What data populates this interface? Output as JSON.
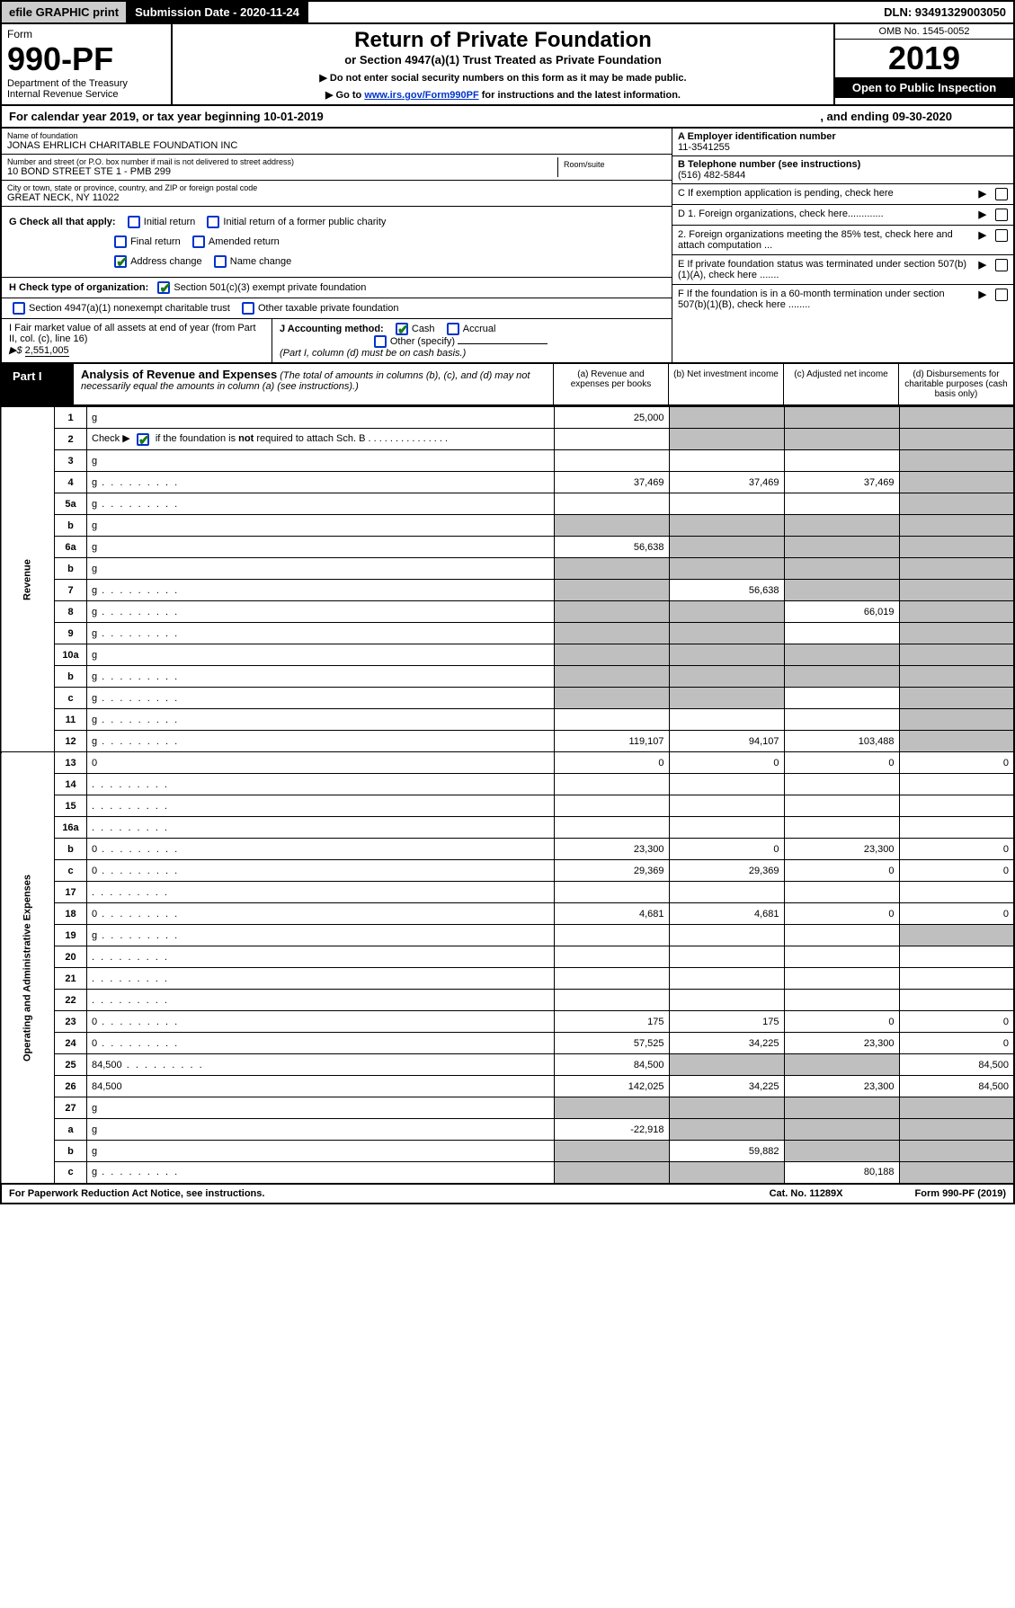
{
  "colors": {
    "link": "#0033cc",
    "check_border": "#0033cc",
    "check_mark": "#1a7a1a",
    "grey_fill": "#bfbfbf",
    "black": "#000000"
  },
  "topbar": {
    "efile": "efile GRAPHIC print",
    "sub_label": "Submission Date - 2020-11-24",
    "dln": "DLN: 93491329003050"
  },
  "header": {
    "form_word": "Form",
    "form_no": "990-PF",
    "dept": "Department of the Treasury",
    "irs": "Internal Revenue Service",
    "title": "Return of Private Foundation",
    "subtitle": "or Section 4947(a)(1) Trust Treated as Private Foundation",
    "note1": "▶ Do not enter social security numbers on this form as it may be made public.",
    "note2_pre": "▶ Go to ",
    "note2_link": "www.irs.gov/Form990PF",
    "note2_post": " for instructions and the latest information.",
    "omb": "OMB No. 1545-0052",
    "year": "2019",
    "open": "Open to Public Inspection"
  },
  "calrow": {
    "a": "For calendar year 2019, or tax year beginning 10-01-2019",
    "b": ", and ending 09-30-2020"
  },
  "entity": {
    "name_lbl": "Name of foundation",
    "name": "JONAS EHRLICH CHARITABLE FOUNDATION INC",
    "addr_lbl": "Number and street (or P.O. box number if mail is not delivered to street address)",
    "addr": "10 BOND STREET STE 1 - PMB 299",
    "room_lbl": "Room/suite",
    "city_lbl": "City or town, state or province, country, and ZIP or foreign postal code",
    "city": "GREAT NECK, NY  11022",
    "ein_lbl": "A Employer identification number",
    "ein": "11-3541255",
    "tel_lbl": "B Telephone number (see instructions)",
    "tel": "(516) 482-5844",
    "c_lbl": "C If exemption application is pending, check here",
    "d1": "D 1. Foreign organizations, check here.............",
    "d2": "2. Foreign organizations meeting the 85% test, check here and attach computation ...",
    "e": "E  If private foundation status was terminated under section 507(b)(1)(A), check here .......",
    "f": "F  If the foundation is in a 60-month termination under section 507(b)(1)(B), check here ........"
  },
  "g": {
    "label": "G Check all that apply:",
    "opts": [
      "Initial return",
      "Initial return of a former public charity",
      "Final return",
      "Amended return",
      "Address change",
      "Name change"
    ]
  },
  "h": {
    "label": "H Check type of organization:",
    "opt1": "Section 501(c)(3) exempt private foundation",
    "opt2": "Section 4947(a)(1) nonexempt charitable trust",
    "opt3": "Other taxable private foundation"
  },
  "i": {
    "label": "I Fair market value of all assets at end of year (from Part II, col. (c), line 16)",
    "val": "2,551,005",
    "arrow": "▶$"
  },
  "j": {
    "label": "J Accounting method:",
    "cash": "Cash",
    "accrual": "Accrual",
    "other": "Other (specify)",
    "note": "(Part I, column (d) must be on cash basis.)"
  },
  "part1": {
    "label": "Part I",
    "title": "Analysis of Revenue and Expenses",
    "sub": "(The total of amounts in columns (b), (c), and (d) may not necessarily equal the amounts in column (a) (see instructions).)",
    "cols": {
      "a": "(a)   Revenue and expenses per books",
      "b": "(b)  Net investment income",
      "c": "(c)  Adjusted net income",
      "d": "(d)  Disbursements for charitable purposes (cash basis only)"
    }
  },
  "side": {
    "rev": "Revenue",
    "exp": "Operating and Administrative Expenses"
  },
  "rows": [
    {
      "n": "1",
      "d": "g",
      "a": "25,000",
      "b": "g",
      "c": "g"
    },
    {
      "n": "2",
      "d": "g",
      "a": "",
      "b": "g",
      "c": "g",
      "ck": true
    },
    {
      "n": "3",
      "d": "g",
      "a": "",
      "b": "",
      "c": ""
    },
    {
      "n": "4",
      "d": "g",
      "a": "37,469",
      "b": "37,469",
      "c": "37,469",
      "dots": true
    },
    {
      "n": "5a",
      "d": "g",
      "a": "",
      "b": "",
      "c": "",
      "dots": true
    },
    {
      "n": "b",
      "d": "g",
      "a": "g",
      "b": "g",
      "c": "g"
    },
    {
      "n": "6a",
      "d": "g",
      "a": "56,638",
      "b": "g",
      "c": "g"
    },
    {
      "n": "b",
      "d": "g",
      "a": "g",
      "b": "g",
      "c": "g"
    },
    {
      "n": "7",
      "d": "g",
      "a": "g",
      "b": "56,638",
      "c": "g",
      "dots": true
    },
    {
      "n": "8",
      "d": "g",
      "a": "g",
      "b": "g",
      "c": "66,019",
      "dots": true
    },
    {
      "n": "9",
      "d": "g",
      "a": "g",
      "b": "g",
      "c": "",
      "dots": true
    },
    {
      "n": "10a",
      "d": "g",
      "a": "g",
      "b": "g",
      "c": "g"
    },
    {
      "n": "b",
      "d": "g",
      "a": "g",
      "b": "g",
      "c": "g",
      "dots": true
    },
    {
      "n": "c",
      "d": "g",
      "a": "g",
      "b": "g",
      "c": "",
      "dots": true
    },
    {
      "n": "11",
      "d": "g",
      "a": "",
      "b": "",
      "c": "",
      "dots": true
    },
    {
      "n": "12",
      "d": "g",
      "a": "119,107",
      "b": "94,107",
      "c": "103,488",
      "dots": true
    },
    {
      "n": "13",
      "d": "0",
      "a": "0",
      "b": "0",
      "c": "0"
    },
    {
      "n": "14",
      "d": "",
      "a": "",
      "b": "",
      "c": "",
      "dots": true
    },
    {
      "n": "15",
      "d": "",
      "a": "",
      "b": "",
      "c": "",
      "dots": true
    },
    {
      "n": "16a",
      "d": "",
      "a": "",
      "b": "",
      "c": "",
      "dots": true
    },
    {
      "n": "b",
      "d": "0",
      "a": "23,300",
      "b": "0",
      "c": "23,300",
      "dots": true
    },
    {
      "n": "c",
      "d": "0",
      "a": "29,369",
      "b": "29,369",
      "c": "0",
      "dots": true
    },
    {
      "n": "17",
      "d": "",
      "a": "",
      "b": "",
      "c": "",
      "dots": true
    },
    {
      "n": "18",
      "d": "0",
      "a": "4,681",
      "b": "4,681",
      "c": "0",
      "dots": true
    },
    {
      "n": "19",
      "d": "g",
      "a": "",
      "b": "",
      "c": "",
      "dots": true
    },
    {
      "n": "20",
      "d": "",
      "a": "",
      "b": "",
      "c": "",
      "dots": true
    },
    {
      "n": "21",
      "d": "",
      "a": "",
      "b": "",
      "c": "",
      "dots": true
    },
    {
      "n": "22",
      "d": "",
      "a": "",
      "b": "",
      "c": "",
      "dots": true
    },
    {
      "n": "23",
      "d": "0",
      "a": "175",
      "b": "175",
      "c": "0",
      "dots": true
    },
    {
      "n": "24",
      "d": "0",
      "a": "57,525",
      "b": "34,225",
      "c": "23,300",
      "dots": true
    },
    {
      "n": "25",
      "d": "84,500",
      "a": "84,500",
      "b": "g",
      "c": "g",
      "dots": true
    },
    {
      "n": "26",
      "d": "84,500",
      "a": "142,025",
      "b": "34,225",
      "c": "23,300"
    },
    {
      "n": "27",
      "d": "g",
      "a": "g",
      "b": "g",
      "c": "g"
    },
    {
      "n": "a",
      "d": "g",
      "a": "-22,918",
      "b": "g",
      "c": "g"
    },
    {
      "n": "b",
      "d": "g",
      "a": "g",
      "b": "59,882",
      "c": "g"
    },
    {
      "n": "c",
      "d": "g",
      "a": "g",
      "b": "g",
      "c": "80,188",
      "dots": true
    }
  ],
  "footer": {
    "left": "For Paperwork Reduction Act Notice, see instructions.",
    "mid": "Cat. No. 11289X",
    "right": "Form 990-PF (2019)"
  }
}
